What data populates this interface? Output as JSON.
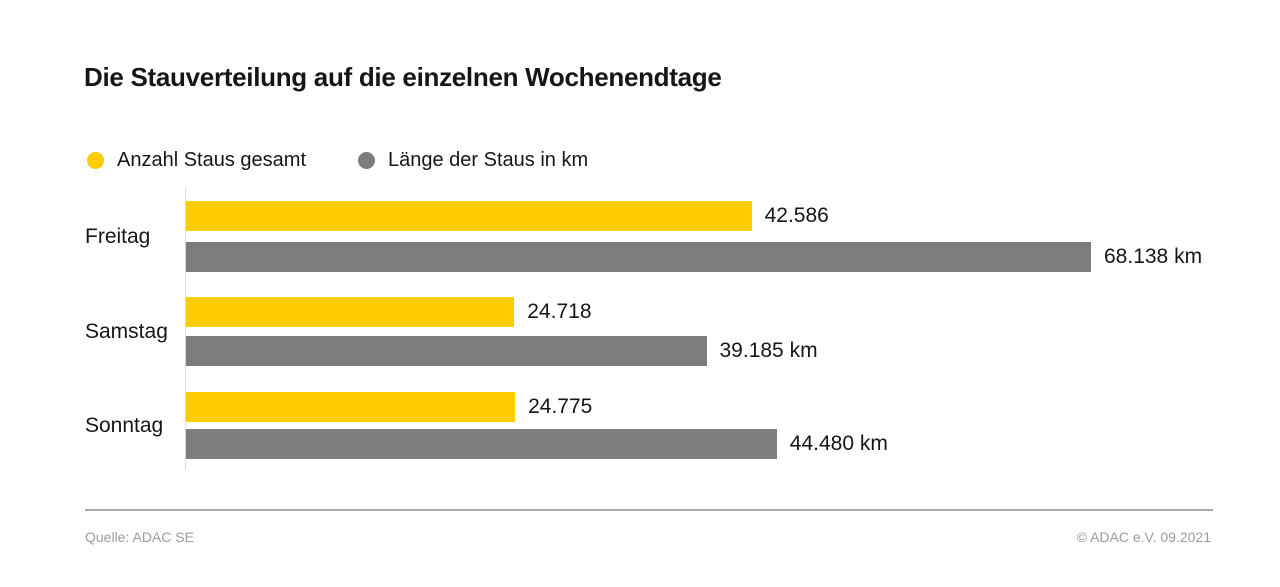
{
  "title": "Die Stauverteilung auf die einzelnen Wochenendtage",
  "legend": {
    "items": [
      {
        "label": "Anzahl Staus gesamt",
        "color": "#FFCC00"
      },
      {
        "label": "Länge der Staus in km",
        "color": "#7D7D7D"
      }
    ]
  },
  "chart_data": {
    "type": "bar",
    "orientation": "horizontal",
    "title": "Die Stauverteilung auf die einzelnen Wochenendtage",
    "categories": [
      "Freitag",
      "Samstag",
      "Sonntag"
    ],
    "series": [
      {
        "name": "Anzahl Staus gesamt",
        "color": "#FFCC00",
        "values": [
          42586,
          24718,
          24775
        ],
        "value_labels": [
          "42.586",
          "24.718",
          "24.775"
        ]
      },
      {
        "name": "Länge der Staus in km",
        "color": "#7D7D7D",
        "values": [
          68138,
          39185,
          44480
        ],
        "value_labels": [
          "68.138 km",
          "39.185 km",
          "44.480 km"
        ]
      }
    ],
    "xmax": 68138,
    "xlim": [
      0,
      68138
    ],
    "grid": false,
    "legend_position": "top-left",
    "value_labels_position": "right-of-bar"
  },
  "footer": {
    "source": "Quelle: ADAC SE",
    "copyright": "© ADAC e.V. 09.2021"
  },
  "colors": {
    "accent_yellow": "#FFCC00",
    "bar_gray": "#7D7D7D",
    "text": "#161616",
    "footer_text": "#9C9C9C",
    "axis_line": "#D9D9D9",
    "divider": "#ABABAB"
  }
}
